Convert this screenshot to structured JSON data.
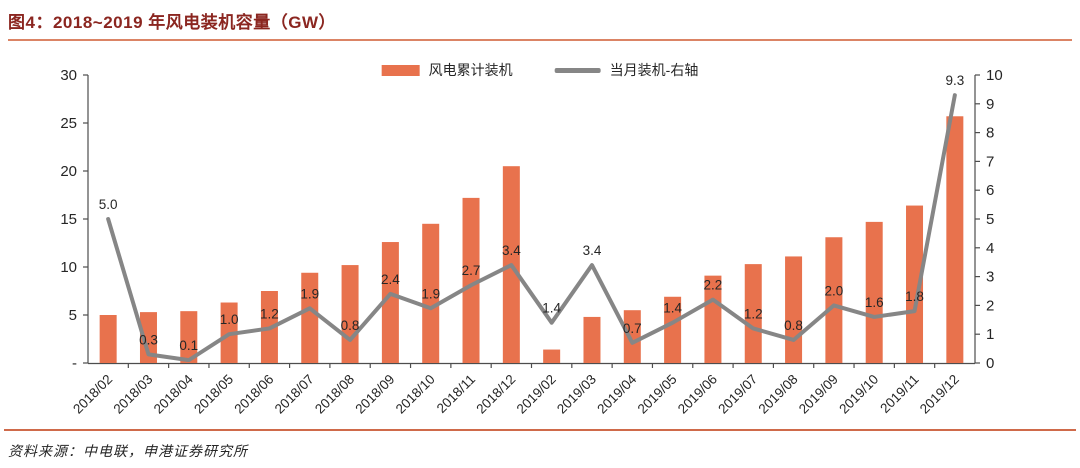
{
  "header": {
    "title": "图4：2018~2019 年风电装机容量（GW）",
    "title_color": "#8B2620",
    "rule_color": "#DB8465"
  },
  "footer": {
    "source_note": "资料来源：中电联，申港证券研究所",
    "rule_color": "#CF6A4A"
  },
  "legend": {
    "items": [
      {
        "label": "风电累计装机",
        "marker": "bar-swatch",
        "color": "#E8724D"
      },
      {
        "label": "当月装机-右轴",
        "marker": "line-swatch",
        "color": "#868686"
      }
    ]
  },
  "chart_data": {
    "type": "bar+line",
    "title": "2018~2019 年风电装机容量（GW）",
    "xlabel": "",
    "ylabel": "",
    "grid": false,
    "legend_position": "top-center",
    "categories": [
      "2018/02",
      "2018/03",
      "2018/04",
      "2018/05",
      "2018/06",
      "2018/07",
      "2018/08",
      "2018/09",
      "2018/10",
      "2018/11",
      "2018/12",
      "2019/02",
      "2019/03",
      "2019/04",
      "2019/05",
      "2019/06",
      "2019/07",
      "2019/08",
      "2019/09",
      "2019/10",
      "2019/11",
      "2019/12"
    ],
    "series": [
      {
        "name": "风电累计装机",
        "type": "bar",
        "axis": "left",
        "color": "#E8724D",
        "values": [
          5.0,
          5.3,
          5.4,
          6.3,
          7.5,
          9.4,
          10.2,
          12.6,
          14.5,
          17.2,
          20.5,
          1.4,
          4.8,
          5.5,
          6.9,
          9.1,
          10.3,
          11.1,
          13.1,
          14.7,
          16.4,
          25.7
        ]
      },
      {
        "name": "当月装机-右轴",
        "type": "line",
        "axis": "right",
        "color": "#868686",
        "show_data_labels": true,
        "values": [
          5.0,
          0.3,
          0.1,
          1.0,
          1.2,
          1.9,
          0.8,
          2.4,
          1.9,
          2.7,
          3.4,
          1.4,
          3.4,
          0.7,
          1.4,
          2.2,
          1.2,
          0.8,
          2.0,
          1.6,
          1.8,
          9.3
        ]
      }
    ],
    "left_axis": {
      "min": 0,
      "max": 30,
      "tick_values": [
        30,
        25,
        20,
        15,
        10,
        5,
        0
      ],
      "tick_labels": [
        "30",
        "25",
        "20",
        "15",
        "10",
        "5",
        "-"
      ]
    },
    "right_axis": {
      "min": 0,
      "max": 10,
      "tick_values": [
        10,
        9,
        8,
        7,
        6,
        5,
        4,
        3,
        2,
        1,
        0
      ],
      "tick_labels": [
        "10",
        "9",
        "8",
        "7",
        "6",
        "5",
        "4",
        "3",
        "2",
        "1",
        "0"
      ]
    }
  },
  "style": {
    "axis_color": "#4D4D4D",
    "label_color": "#1A1A1A"
  }
}
